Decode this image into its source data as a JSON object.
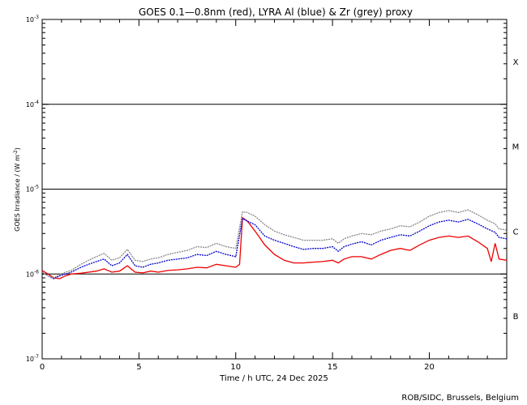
{
  "chart_data": {
    "type": "line",
    "title": "GOES 0.1—0.8nm (red), LYRA Al (blue) & Zr (grey) proxy",
    "xlabel": "Time / h UTC, 24 Dec 2025",
    "ylabel_main": "GOES Irradiance / (W m",
    "ylabel_sup": "-2",
    "ylabel_end": ")",
    "credit": "ROB/SIDC, Brussels, Belgium",
    "xlim": [
      0,
      24
    ],
    "ylim": [
      1e-07,
      0.001
    ],
    "y_scale": "log",
    "x_ticks": [
      {
        "value": 0,
        "label": "0"
      },
      {
        "value": 5,
        "label": "5"
      },
      {
        "value": 10,
        "label": "10"
      },
      {
        "value": 15,
        "label": "15"
      },
      {
        "value": 20,
        "label": "20"
      }
    ],
    "y_ticks": [
      {
        "value": 1e-07,
        "base": "10",
        "exp": "-7"
      },
      {
        "value": 1e-06,
        "base": "10",
        "exp": "-6"
      },
      {
        "value": 1e-05,
        "base": "10",
        "exp": "-5"
      },
      {
        "value": 0.0001,
        "base": "10",
        "exp": "-4"
      },
      {
        "value": 0.001,
        "base": "10",
        "exp": "-3"
      }
    ],
    "flare_class_lines": [
      1e-06,
      1e-05,
      0.0001
    ],
    "flare_classes": [
      {
        "label": "B",
        "value": 3.2e-07
      },
      {
        "label": "C",
        "value": 3.2e-06
      },
      {
        "label": "M",
        "value": 3.2e-05
      },
      {
        "label": "X",
        "value": 0.00032
      }
    ],
    "series": [
      {
        "color": "#ee0000",
        "x": [
          0,
          0.3,
          0.6,
          0.9,
          1.2,
          1.5,
          2,
          2.4,
          2.8,
          3.2,
          3.6,
          4,
          4.4,
          4.8,
          5.2,
          5.6,
          6,
          6.5,
          7,
          7.5,
          8,
          8.5,
          9,
          9.5,
          10,
          10.2,
          10.35,
          10.6,
          11,
          11.5,
          12,
          12.5,
          13,
          13.5,
          14,
          14.5,
          15,
          15.3,
          15.6,
          16,
          16.5,
          17,
          17.5,
          18,
          18.5,
          19,
          19.5,
          20,
          20.5,
          21,
          21.5,
          22,
          22.5,
          23,
          23.2,
          23.4,
          23.6,
          24
        ],
        "y": [
          1.1e-06,
          1e-06,
          9e-07,
          8.8e-07,
          9.5e-07,
          1e-06,
          1.02e-06,
          1.05e-06,
          1.08e-06,
          1.15e-06,
          1.05e-06,
          1.08e-06,
          1.25e-06,
          1.05e-06,
          1.03e-06,
          1.08e-06,
          1.05e-06,
          1.1e-06,
          1.12e-06,
          1.15e-06,
          1.2e-06,
          1.18e-06,
          1.3e-06,
          1.25e-06,
          1.2e-06,
          1.3e-06,
          4.6e-06,
          4.2e-06,
          3.2e-06,
          2.2e-06,
          1.7e-06,
          1.45e-06,
          1.35e-06,
          1.35e-06,
          1.38e-06,
          1.4e-06,
          1.45e-06,
          1.35e-06,
          1.5e-06,
          1.6e-06,
          1.6e-06,
          1.5e-06,
          1.7e-06,
          1.9e-06,
          2e-06,
          1.9e-06,
          2.2e-06,
          2.5e-06,
          2.7e-06,
          2.8e-06,
          2.7e-06,
          2.8e-06,
          2.4e-06,
          2e-06,
          1.4e-06,
          2.3e-06,
          1.5e-06,
          1.45e-06
        ]
      },
      {
        "color": "#0000cc",
        "x": [
          0,
          0.3,
          0.6,
          0.9,
          1.2,
          1.5,
          2,
          2.4,
          2.8,
          3.2,
          3.6,
          4,
          4.4,
          4.8,
          5.2,
          5.6,
          6,
          6.5,
          7,
          7.5,
          8,
          8.5,
          9,
          9.5,
          10,
          10.35,
          10.6,
          11,
          11.5,
          12,
          12.5,
          13,
          13.5,
          14,
          14.5,
          15,
          15.3,
          15.6,
          16,
          16.5,
          17,
          17.5,
          18,
          18.5,
          19,
          19.5,
          20,
          20.5,
          21,
          21.5,
          22,
          22.5,
          23,
          23.4,
          23.6,
          24
        ],
        "y": [
          1.05e-06,
          9.5e-07,
          8.8e-07,
          9.5e-07,
          1e-06,
          1.05e-06,
          1.2e-06,
          1.3e-06,
          1.4e-06,
          1.5e-06,
          1.25e-06,
          1.35e-06,
          1.7e-06,
          1.25e-06,
          1.2e-06,
          1.3e-06,
          1.35e-06,
          1.45e-06,
          1.5e-06,
          1.55e-06,
          1.7e-06,
          1.65e-06,
          1.85e-06,
          1.7e-06,
          1.6e-06,
          4.5e-06,
          4.2e-06,
          3.8e-06,
          2.8e-06,
          2.5e-06,
          2.3e-06,
          2.1e-06,
          1.95e-06,
          2e-06,
          2e-06,
          2.1e-06,
          1.85e-06,
          2.1e-06,
          2.25e-06,
          2.4e-06,
          2.2e-06,
          2.5e-06,
          2.7e-06,
          2.9e-06,
          2.8e-06,
          3.2e-06,
          3.7e-06,
          4.1e-06,
          4.3e-06,
          4.1e-06,
          4.4e-06,
          3.9e-06,
          3.4e-06,
          3.1e-06,
          2.7e-06,
          2.6e-06
        ]
      },
      {
        "color": "#888888",
        "x": [
          0,
          0.3,
          0.6,
          0.9,
          1.2,
          1.5,
          2,
          2.4,
          2.8,
          3.2,
          3.6,
          4,
          4.4,
          4.8,
          5.2,
          5.6,
          6,
          6.5,
          7,
          7.5,
          8,
          8.5,
          9,
          9.5,
          10,
          10.35,
          10.6,
          11,
          11.5,
          12,
          12.5,
          13,
          13.5,
          14,
          14.5,
          15,
          15.3,
          15.6,
          16,
          16.5,
          17,
          17.5,
          18,
          18.5,
          19,
          19.5,
          20,
          20.5,
          21,
          21.5,
          22,
          22.5,
          23,
          23.4,
          23.6,
          24
        ],
        "y": [
          1.05e-06,
          9.5e-07,
          9e-07,
          9.8e-07,
          1.05e-06,
          1.1e-06,
          1.3e-06,
          1.45e-06,
          1.6e-06,
          1.75e-06,
          1.45e-06,
          1.55e-06,
          1.95e-06,
          1.45e-06,
          1.4e-06,
          1.5e-06,
          1.55e-06,
          1.7e-06,
          1.8e-06,
          1.9e-06,
          2.1e-06,
          2.05e-06,
          2.3e-06,
          2.1e-06,
          2e-06,
          5.4e-06,
          5.3e-06,
          4.8e-06,
          3.8e-06,
          3.2e-06,
          2.9e-06,
          2.7e-06,
          2.5e-06,
          2.5e-06,
          2.5e-06,
          2.6e-06,
          2.3e-06,
          2.6e-06,
          2.8e-06,
          3e-06,
          2.9e-06,
          3.2e-06,
          3.4e-06,
          3.7e-06,
          3.6e-06,
          4.1e-06,
          4.8e-06,
          5.3e-06,
          5.6e-06,
          5.3e-06,
          5.7e-06,
          5e-06,
          4.3e-06,
          3.9e-06,
          3.4e-06,
          3.3e-06
        ]
      }
    ]
  }
}
